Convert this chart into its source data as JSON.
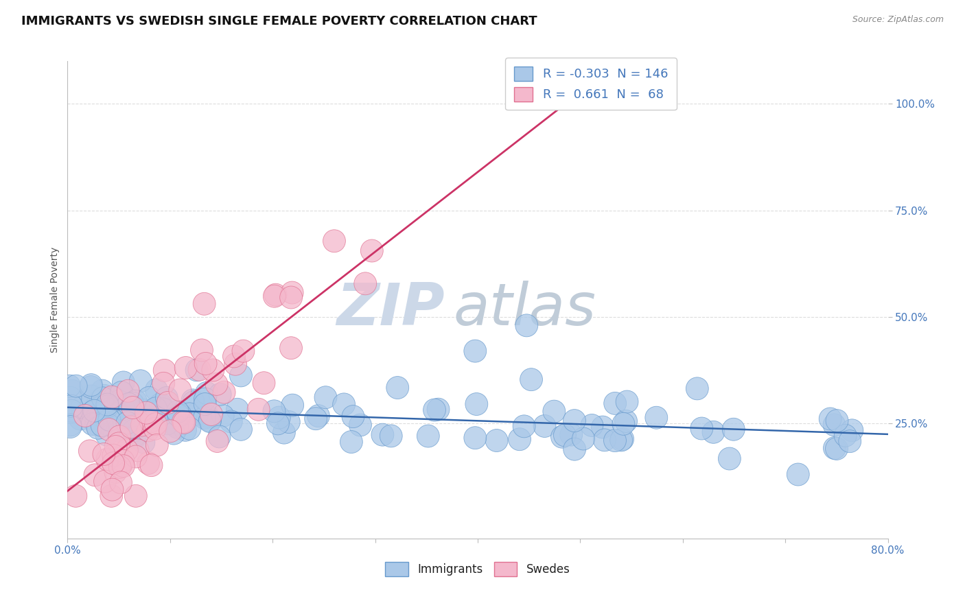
{
  "title": "IMMIGRANTS VS SWEDISH SINGLE FEMALE POVERTY CORRELATION CHART",
  "source_text": "Source: ZipAtlas.com",
  "ylabel": "Single Female Poverty",
  "xlim": [
    0.0,
    0.8
  ],
  "ylim": [
    -0.02,
    1.1
  ],
  "xticks": [
    0.0,
    0.1,
    0.2,
    0.3,
    0.4,
    0.5,
    0.6,
    0.7,
    0.8
  ],
  "xticklabels": [
    "0.0%",
    "",
    "",
    "",
    "",
    "",
    "",
    "",
    "80.0%"
  ],
  "ytick_positions": [
    0.25,
    0.5,
    0.75,
    1.0
  ],
  "ytick_labels": [
    "25.0%",
    "50.0%",
    "75.0%",
    "100.0%"
  ],
  "blue_fill": "#aac8e8",
  "blue_edge": "#6699cc",
  "pink_fill": "#f4b8cc",
  "pink_edge": "#e07090",
  "blue_line_color": "#3366aa",
  "pink_line_color": "#cc3366",
  "blue_R": -0.303,
  "blue_N": 146,
  "pink_R": 0.661,
  "pink_N": 68,
  "watermark_zip": "ZIP",
  "watermark_atlas": "atlas",
  "watermark_color_zip": "#d0dce8",
  "watermark_color_atlas": "#c0cce0",
  "grid_color": "#dddddd",
  "background_color": "#ffffff",
  "title_fontsize": 13,
  "axis_label_color": "#4477bb"
}
